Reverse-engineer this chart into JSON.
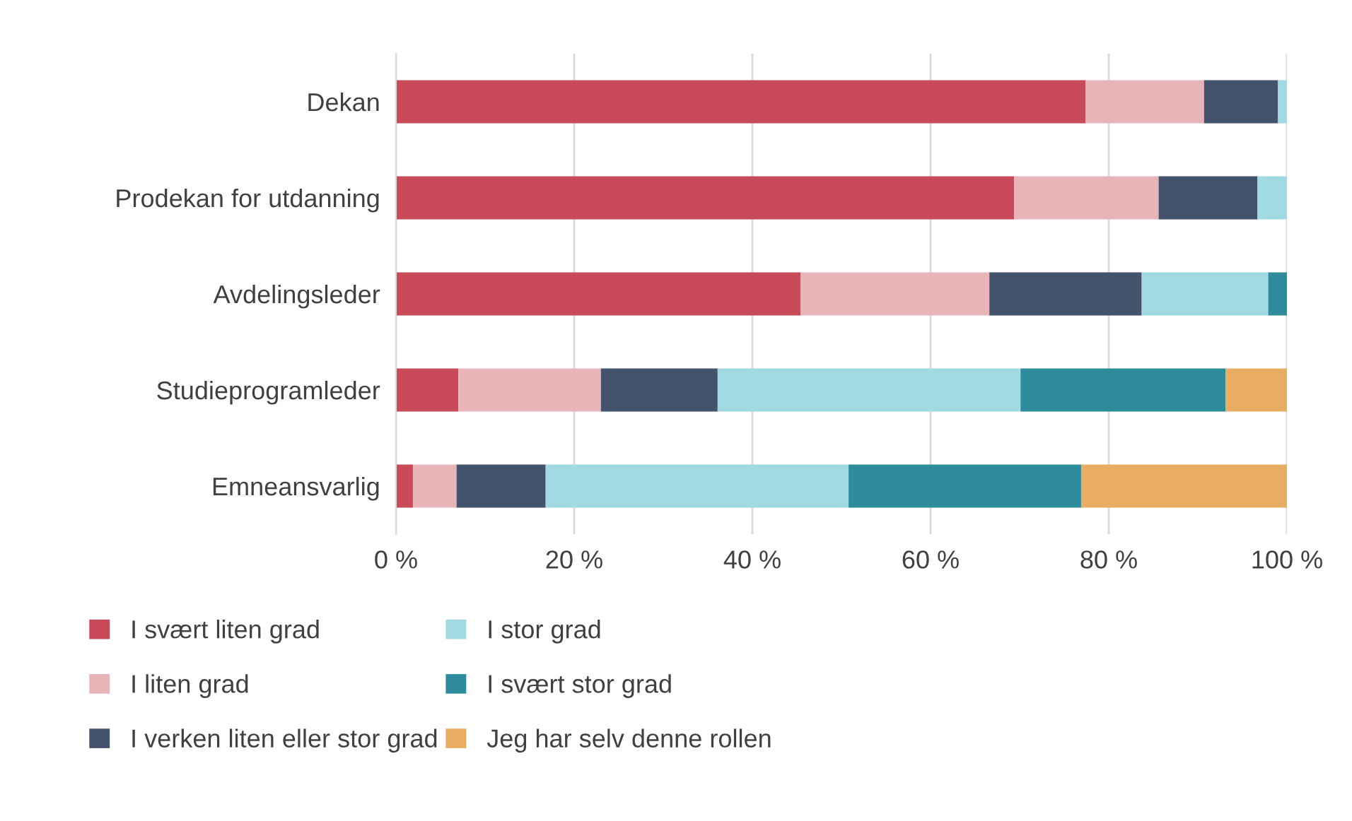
{
  "chart_data": {
    "type": "bar",
    "orientation": "horizontal",
    "stacked": true,
    "categories": [
      "Dekan",
      "Prodekan for utdanning",
      "Avdelingsleder",
      "Studieprogramleder",
      "Emneansvarlig"
    ],
    "series": [
      {
        "name": "I svært liten grad",
        "color": "#c84a58",
        "values": [
          77.4,
          69.4,
          45.4,
          7.0,
          1.9
        ]
      },
      {
        "name": "I liten grad",
        "color": "#e8b4b8",
        "values": [
          13.3,
          16.2,
          21.2,
          16.0,
          4.9
        ]
      },
      {
        "name": "I verken liten eller stor grad",
        "color": "#43536b",
        "values": [
          8.3,
          11.1,
          17.1,
          13.1,
          10.0
        ]
      },
      {
        "name": "I stor grad",
        "color": "#a2dae4",
        "values": [
          1.0,
          3.3,
          14.2,
          34.0,
          34.0
        ]
      },
      {
        "name": "I svært stor grad",
        "color": "#2d8b9b",
        "values": [
          0,
          0,
          2.1,
          23.0,
          26.1
        ]
      },
      {
        "name": "Jeg har selv denne rollen",
        "color": "#e8ac62",
        "values": [
          0,
          0,
          0,
          6.9,
          23.1
        ]
      }
    ],
    "xlim": [
      0,
      100
    ],
    "xticks": [
      {
        "value": 0,
        "label": "0 %"
      },
      {
        "value": 20,
        "label": "20 %"
      },
      {
        "value": 40,
        "label": "40 %"
      },
      {
        "value": 60,
        "label": "60 %"
      },
      {
        "value": 80,
        "label": "80 %"
      },
      {
        "value": 100,
        "label": "100 %"
      }
    ],
    "grid": "x",
    "legend": "bottom"
  }
}
